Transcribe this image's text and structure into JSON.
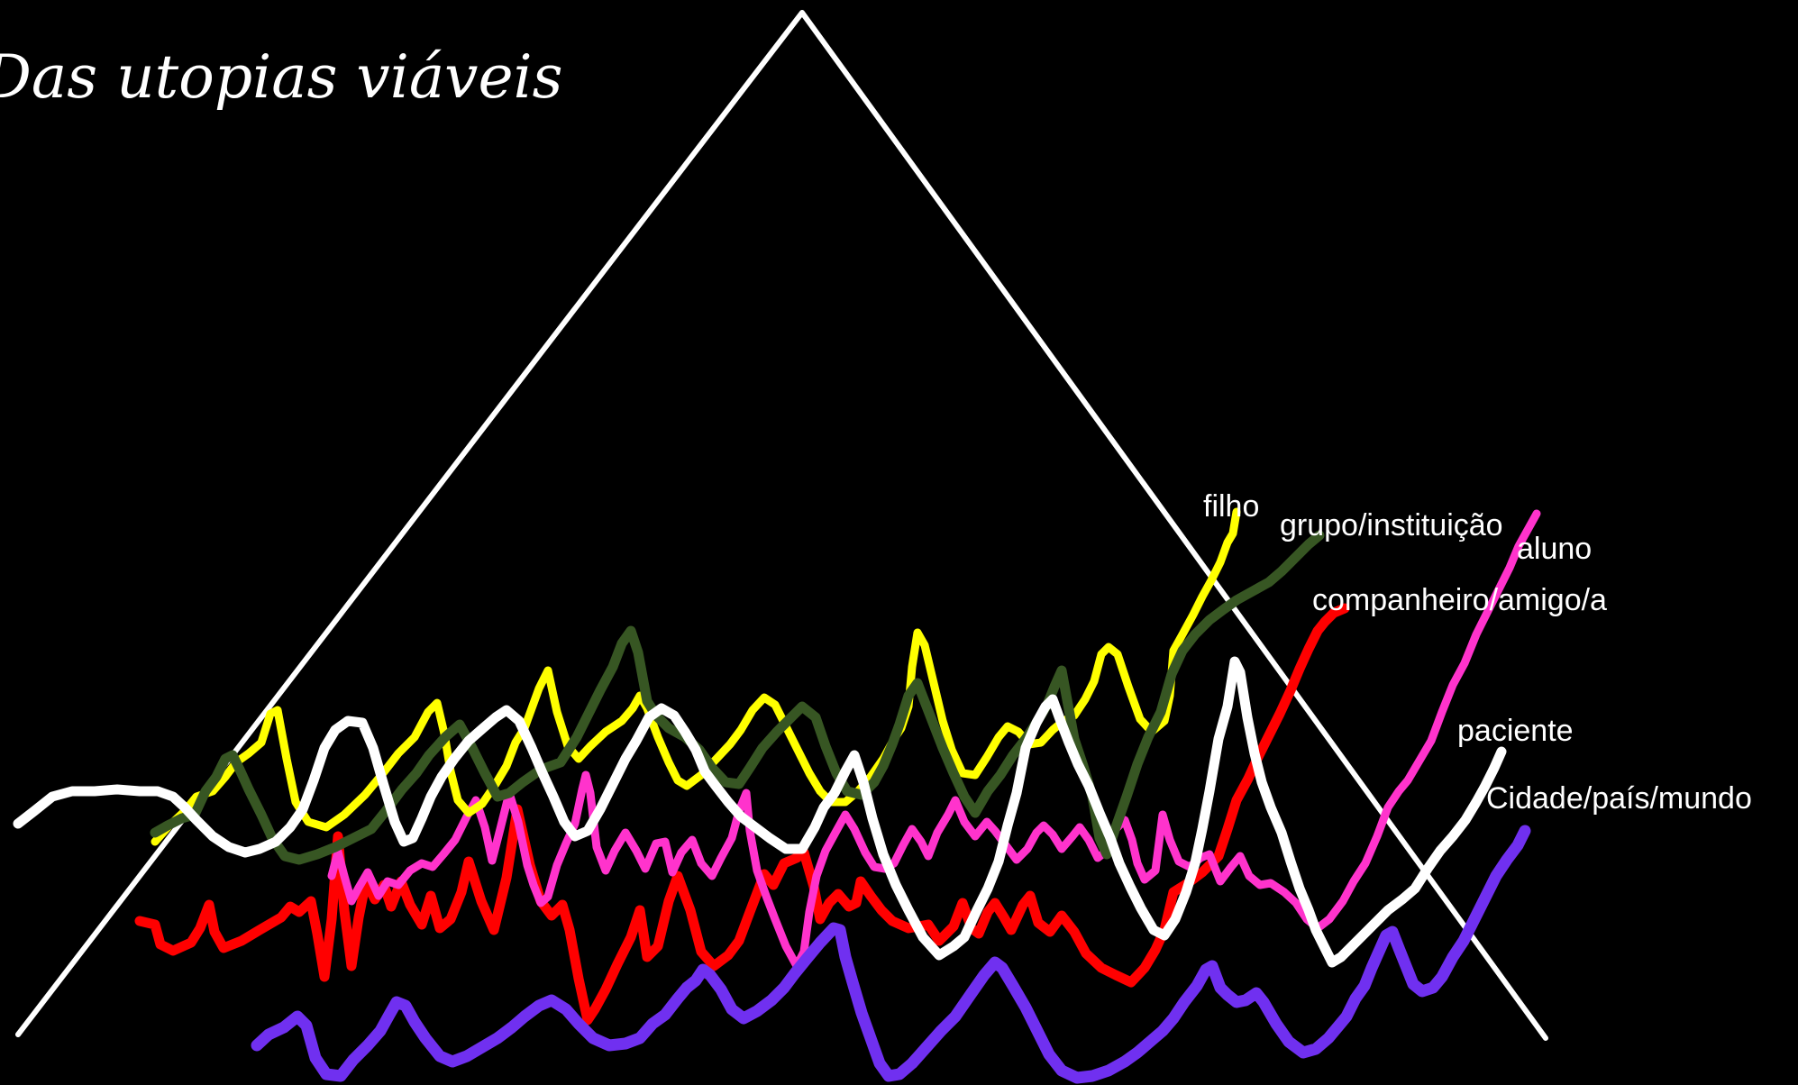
{
  "slide": {
    "title": "Das utopias viáveis",
    "background": "#000000",
    "triangle_color": "#ffffff"
  },
  "lines": [
    {
      "key": "companheiro",
      "label": "companheiro/amigo/a",
      "color": "#ff0000"
    },
    {
      "key": "aluno",
      "label": "aluno",
      "color": "#ff33cc"
    },
    {
      "key": "cidade",
      "label": "Cidade/país/mundo",
      "color": "#7030f0"
    },
    {
      "key": "filho",
      "label": "filho",
      "color": "#ffff00"
    },
    {
      "key": "grupo",
      "label": "grupo/instituição",
      "color": "#375623"
    },
    {
      "key": "paciente",
      "label": "paciente",
      "color": "#ffffff"
    }
  ]
}
